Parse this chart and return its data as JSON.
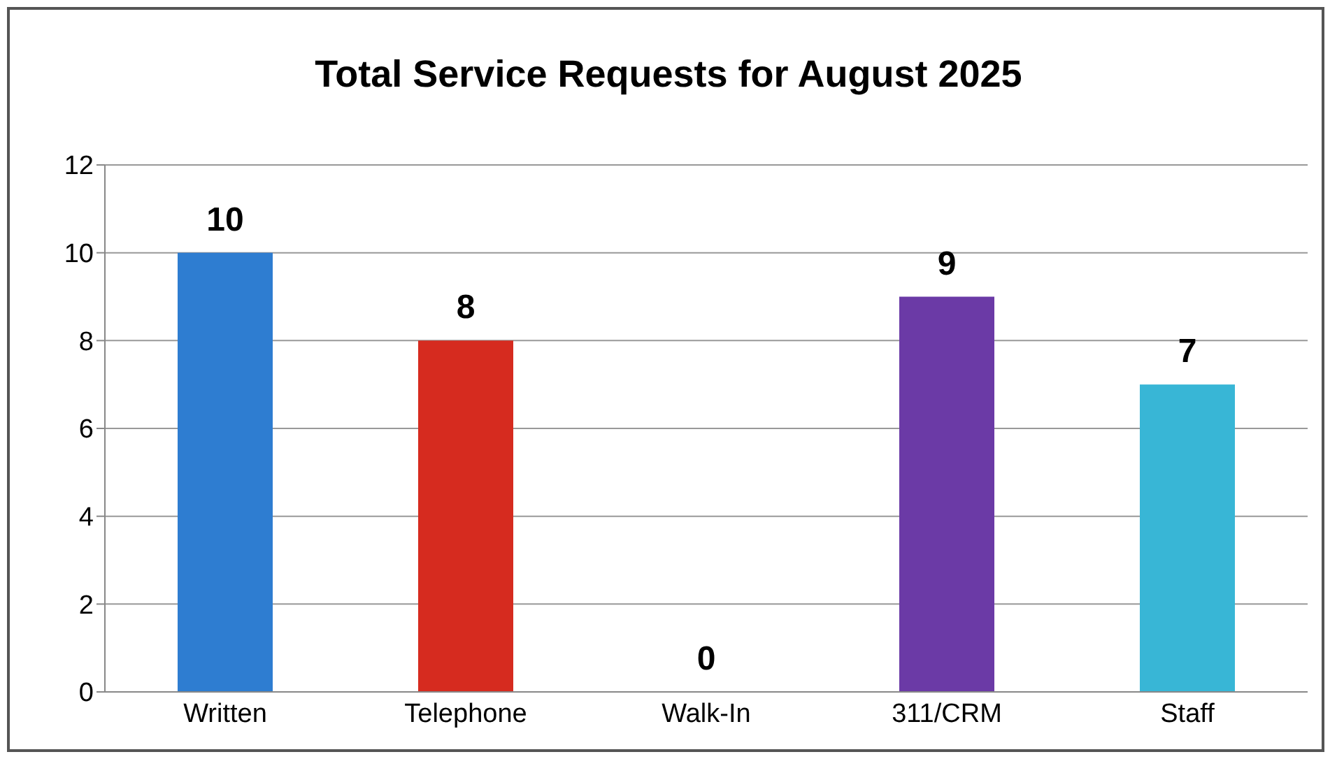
{
  "chart_data": {
    "type": "bar",
    "title": "Total Service Requests for August 2025",
    "categories": [
      "Written",
      "Telephone",
      "Walk-In",
      "311/CRM",
      "Staff"
    ],
    "values": [
      10,
      8,
      0,
      9,
      7
    ],
    "colors": [
      "#2e7dd1",
      "#d62b1f",
      "#7f7f7f",
      "#6b3aa6",
      "#38b6d6"
    ],
    "ylim": [
      0,
      12
    ],
    "yticks": [
      0,
      2,
      4,
      6,
      8,
      10,
      12
    ],
    "grid": "y",
    "data_labels": true
  }
}
